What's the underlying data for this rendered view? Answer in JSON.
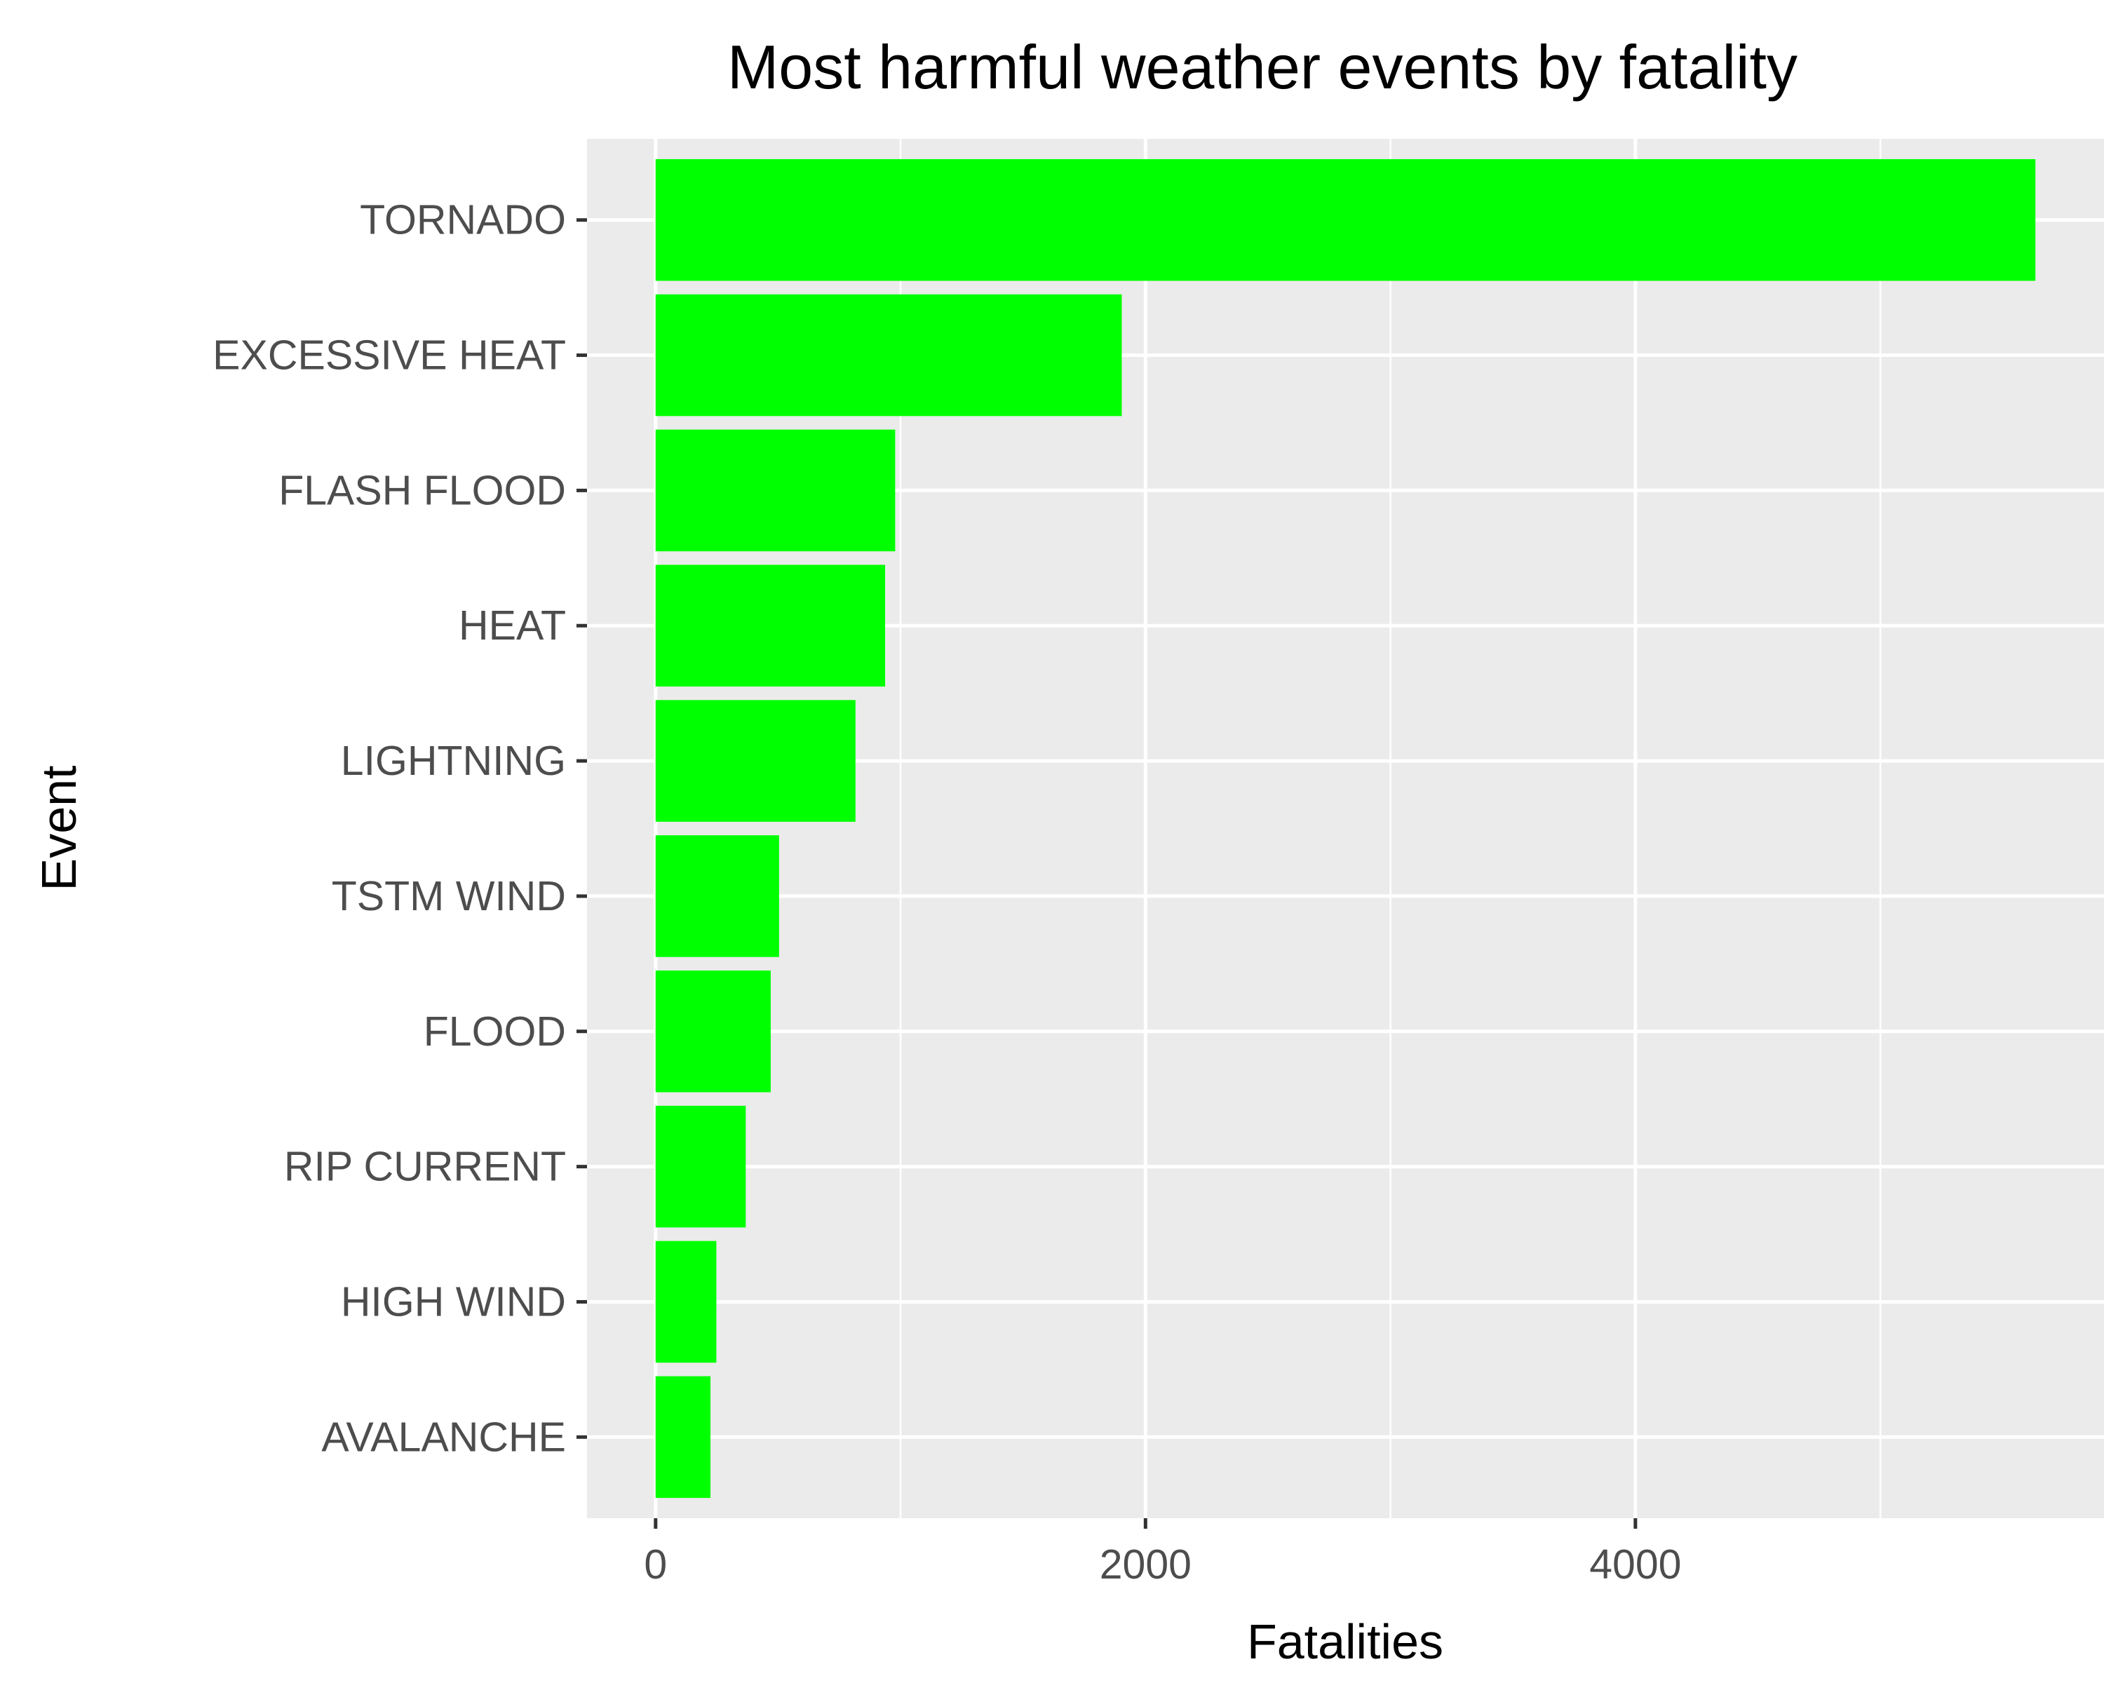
{
  "chart_data": {
    "type": "bar",
    "orientation": "horizontal",
    "title": "Most harmful weather events by fatality",
    "xlabel": "Fatalities",
    "ylabel": "Event",
    "categories": [
      "TORNADO",
      "EXCESSIVE HEAT",
      "FLASH FLOOD",
      "HEAT",
      "LIGHTNING",
      "TSTM WIND",
      "FLOOD",
      "RIP CURRENT",
      "HIGH WIND",
      "AVALANCHE"
    ],
    "values": [
      5633,
      1903,
      978,
      937,
      816,
      504,
      470,
      368,
      248,
      224
    ],
    "xlim": [
      -280,
      5913
    ],
    "xticks": [
      0,
      2000,
      4000
    ],
    "xtick_labels": [
      "0",
      "2000",
      "4000"
    ],
    "grid": true,
    "legend": "none",
    "colors": {
      "bar": "#00ff00",
      "panel": "#ebebeb",
      "grid": "#ffffff",
      "tick_label": "#4d4d4d",
      "tick_mark": "#333333",
      "text": "#000000"
    }
  }
}
